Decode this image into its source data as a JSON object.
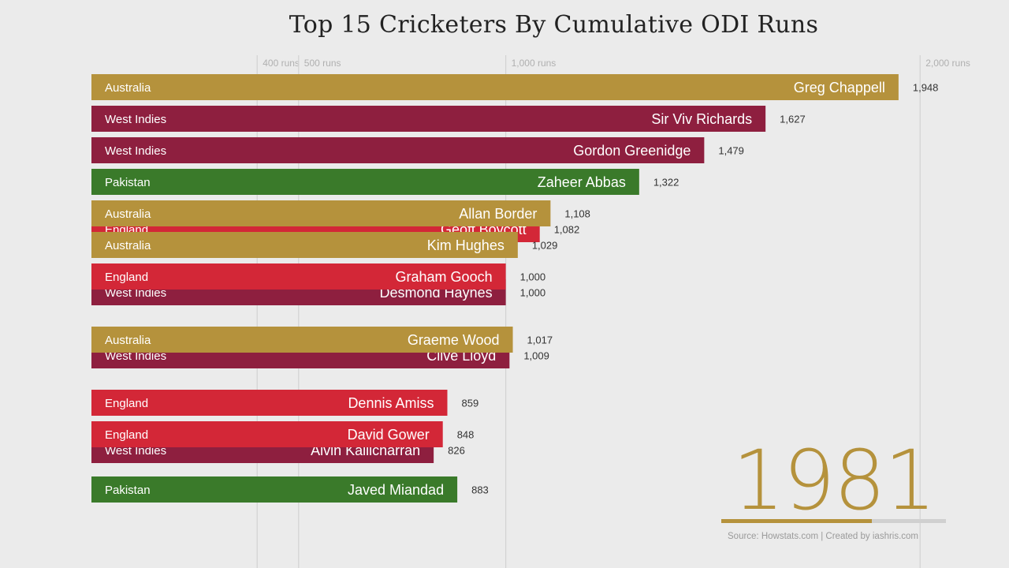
{
  "title": "Top 15 Cricketers By Cumulative ODI Runs",
  "year": "1981",
  "year_progress": 0.67,
  "source": "Source: Howstats.com | Created by iashris.com",
  "colors": {
    "Australia": "#b5923c",
    "West Indies": "#8e1f3f",
    "Pakistan": "#3a7a2a",
    "England": "#d32737",
    "grid": "#d2d2d2",
    "tick": "#b0b0b0"
  },
  "chart_data": {
    "type": "bar",
    "orientation": "horizontal",
    "title": "Top 15 Cricketers By Cumulative ODI Runs",
    "x_ticks": [
      {
        "value": 400,
        "label": "400 runs"
      },
      {
        "value": 500,
        "label": "500 runs"
      },
      {
        "value": 1000,
        "label": "1,000 runs"
      },
      {
        "value": 2000,
        "label": "2,000 runs"
      }
    ],
    "bars": [
      {
        "name": "Greg Chappell",
        "team": "Australia",
        "value": 1948,
        "value_label": "1,948",
        "rank": 1
      },
      {
        "name": "Sir Viv Richards",
        "team": "West Indies",
        "value": 1627,
        "value_label": "1,627",
        "rank": 2
      },
      {
        "name": "Gordon Greenidge",
        "team": "West Indies",
        "value": 1479,
        "value_label": "1,479",
        "rank": 3
      },
      {
        "name": "Zaheer Abbas",
        "team": "Pakistan",
        "value": 1322,
        "value_label": "1,322",
        "rank": 4
      },
      {
        "name": "Geoff Boycott",
        "team": "England",
        "value": 1082,
        "value_label": "1,082",
        "rank": 5.5
      },
      {
        "name": "Allan Border",
        "team": "Australia",
        "value": 1108,
        "value_label": "1,108",
        "rank": 5
      },
      {
        "name": "Kim Hughes",
        "team": "Australia",
        "value": 1029,
        "value_label": "1,029",
        "rank": 6
      },
      {
        "name": "Desmond Haynes",
        "team": "West Indies",
        "value": 1000,
        "value_label": "1,000",
        "rank": 7.5
      },
      {
        "name": "Graham Gooch",
        "team": "England",
        "value": 1000,
        "value_label": "1,000",
        "rank": 7
      },
      {
        "name": "Clive Lloyd",
        "team": "West Indies",
        "value": 1009,
        "value_label": "1,009",
        "rank": 9.5
      },
      {
        "name": "Graeme Wood",
        "team": "Australia",
        "value": 1017,
        "value_label": "1,017",
        "rank": 9
      },
      {
        "name": "Dennis Amiss",
        "team": "England",
        "value": 859,
        "value_label": "859",
        "rank": 11
      },
      {
        "name": "Alvin Kallicharran",
        "team": "West Indies",
        "value": 826,
        "value_label": "826",
        "rank": 12.5
      },
      {
        "name": "David Gower",
        "team": "England",
        "value": 848,
        "value_label": "848",
        "rank": 12
      },
      {
        "name": "Javed Miandad",
        "team": "Pakistan",
        "value": 883,
        "value_label": "883",
        "rank": 13.75
      }
    ]
  }
}
